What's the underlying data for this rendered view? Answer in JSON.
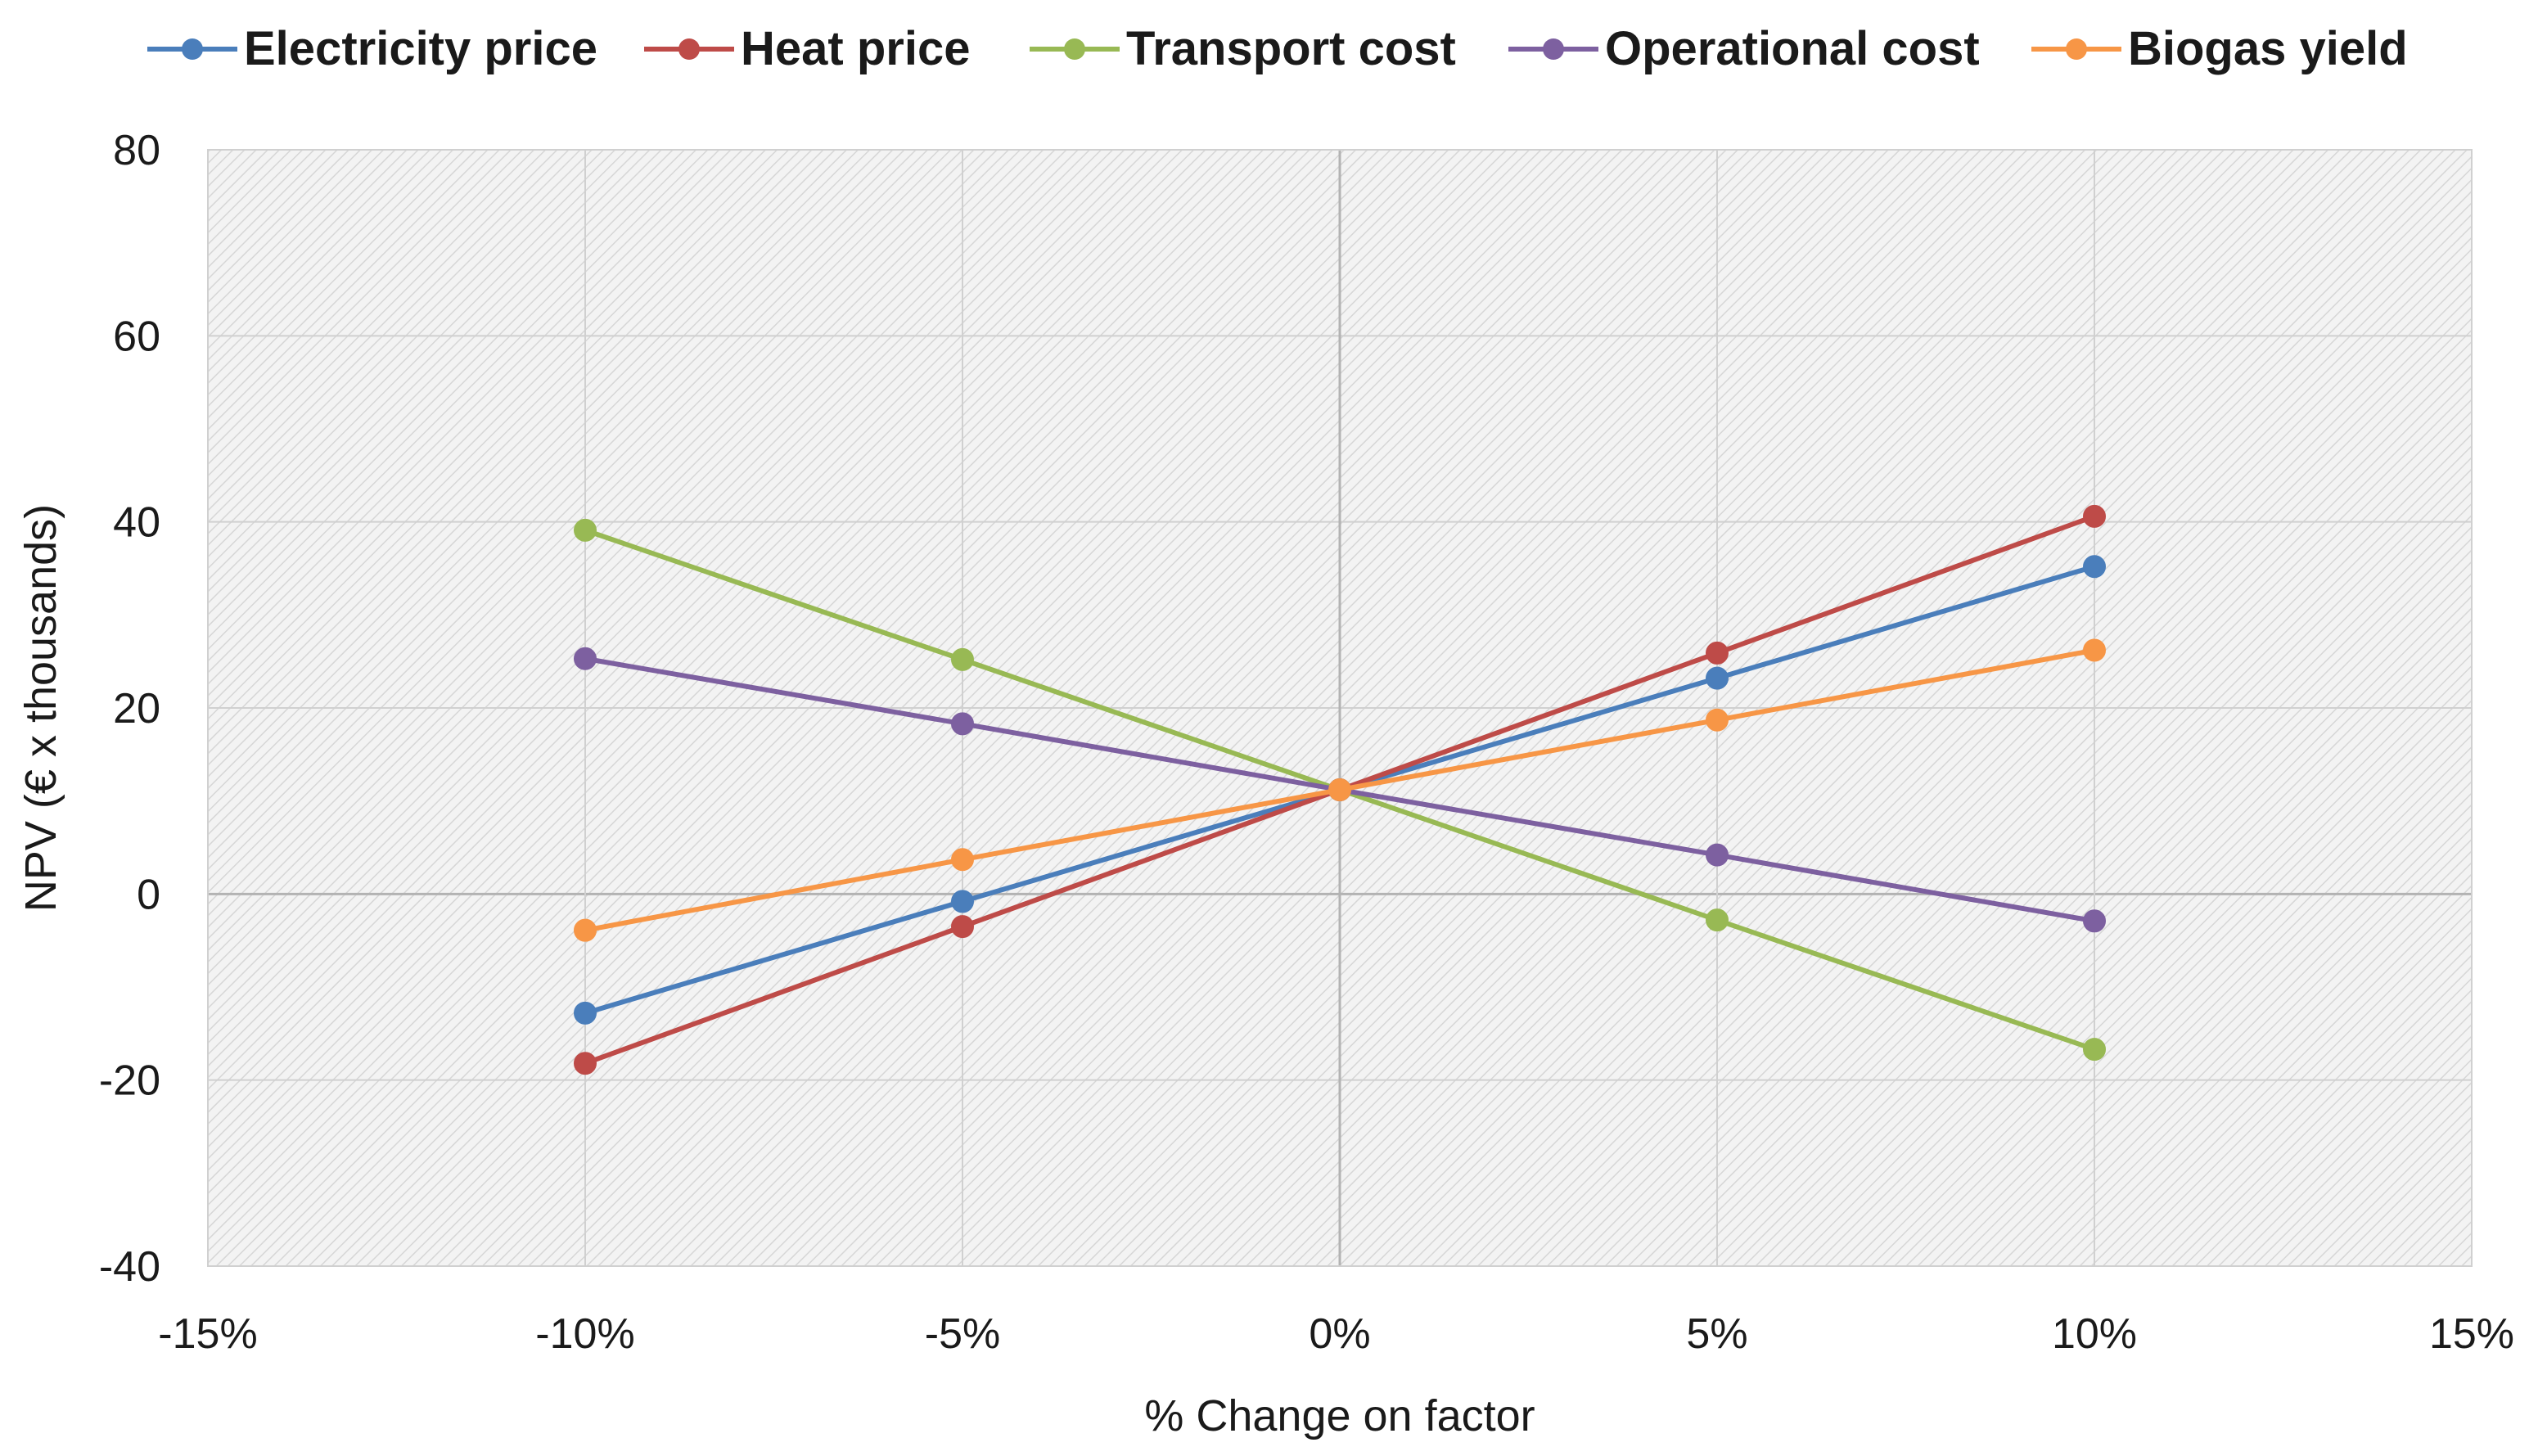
{
  "chart_data": {
    "type": "line",
    "title": "",
    "xlabel": "% Change on factor",
    "ylabel": "NPV (€ x thousands)",
    "xlim": [
      -15,
      15
    ],
    "ylim": [
      -40,
      80
    ],
    "x_ticks": [
      -15,
      -10,
      -5,
      0,
      5,
      10,
      15
    ],
    "x_tick_labels": [
      "-15%",
      "-10%",
      "-5%",
      "0%",
      "5%",
      "10%",
      "15%"
    ],
    "y_ticks": [
      -40,
      -20,
      0,
      20,
      40,
      60,
      80
    ],
    "y_tick_labels": [
      "-40",
      "-20",
      "0",
      "20",
      "40",
      "60",
      "80"
    ],
    "x": [
      -10,
      -5,
      0,
      5,
      10
    ],
    "grid": true,
    "legend_position": "top",
    "series": [
      {
        "name": "Electricity price",
        "color": "#4a7ebb",
        "values": [
          -12.8,
          -0.8,
          11.2,
          23.2,
          35.2
        ]
      },
      {
        "name": "Heat price",
        "color": "#be4b48",
        "values": [
          -18.2,
          -3.5,
          11.2,
          25.9,
          40.6
        ]
      },
      {
        "name": "Transport cost",
        "color": "#98b954",
        "values": [
          39.1,
          25.2,
          11.2,
          -2.8,
          -16.7
        ]
      },
      {
        "name": "Operational cost",
        "color": "#7d60a0",
        "values": [
          25.3,
          18.3,
          11.2,
          4.2,
          -2.9
        ]
      },
      {
        "name": "Biogas yield",
        "color": "#f79646",
        "values": [
          -3.9,
          3.7,
          11.2,
          18.7,
          26.2
        ]
      }
    ]
  }
}
